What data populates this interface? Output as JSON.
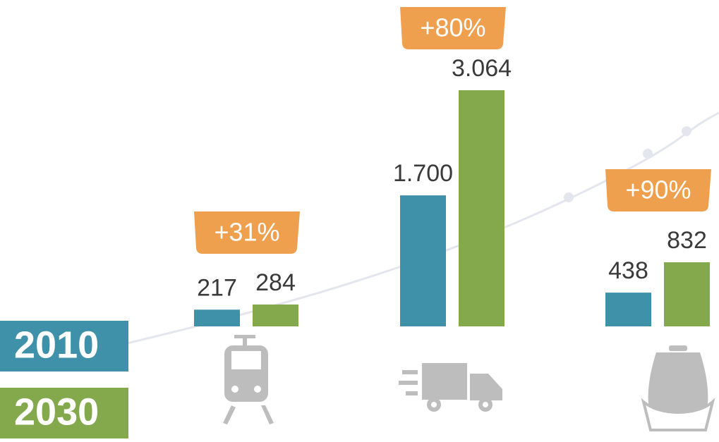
{
  "chart_data": {
    "type": "bar",
    "categories": [
      null,
      null,
      null
    ],
    "series": [
      {
        "name": "2010",
        "color": "#3e91a9",
        "values": [
          217,
          1700,
          438
        ],
        "value_labels": [
          "217",
          "1.700",
          "438"
        ]
      },
      {
        "name": "2030",
        "color": "#84a94c",
        "values": [
          284,
          3064,
          832
        ],
        "value_labels": [
          "284",
          "3.064",
          "832"
        ]
      }
    ],
    "annotations": [
      "+31%",
      "+80%",
      "+90%"
    ],
    "annotation_color": "#eea04f"
  }
}
